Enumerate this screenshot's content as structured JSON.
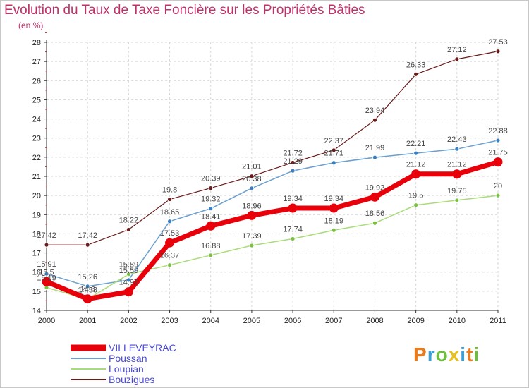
{
  "title": "Evolution du Taux de Taxe Foncière sur les Propriétés Bâties",
  "subtitle": "(en %)",
  "logo": {
    "letters": [
      "P",
      "r",
      "o",
      "x",
      "i",
      "t",
      "i"
    ],
    "colors": [
      "#e87b1e",
      "#3aa0d8",
      "#6dbe3a",
      "#e8c01e",
      "#3aa0d8",
      "#e87b1e",
      "#6dbe3a"
    ]
  },
  "chart_data": {
    "type": "line",
    "x": [
      "2000",
      "2001",
      "2002",
      "2003",
      "2004",
      "2005",
      "2006",
      "2007",
      "2008",
      "2009",
      "2010",
      "2011"
    ],
    "ylim": [
      14,
      28
    ],
    "yticks": [
      14,
      15,
      16,
      17,
      18,
      19,
      20,
      21,
      22,
      23,
      24,
      25,
      26,
      27,
      28
    ],
    "grid": true,
    "legend_position": "bottom-left",
    "series": [
      {
        "name": "Bouzigues",
        "color": "#6b1a1a",
        "point": "#6b1a1a",
        "width": 1.2,
        "r": 3,
        "values": [
          17.42,
          17.42,
          18.22,
          19.8,
          20.39,
          21.01,
          21.72,
          22.37,
          23.94,
          26.33,
          27.12,
          27.53
        ],
        "labels": [
          "17.42",
          "17.42",
          "18.22",
          "19.8",
          "20.39",
          "21.01",
          "21.72",
          "22.37",
          "23.94",
          "26.33",
          "27.12",
          "27.53"
        ]
      },
      {
        "name": "Poussan",
        "color": "#6a9fd0",
        "point": "#3a7fc0",
        "width": 1.5,
        "r": 3,
        "values": [
          15.91,
          15.26,
          15.59,
          18.65,
          19.32,
          20.38,
          21.29,
          21.71,
          21.99,
          22.21,
          22.43,
          22.88
        ],
        "labels": [
          "15.91",
          "15.26",
          "15.59",
          "18.65",
          "19.32",
          "20.38",
          "21.29",
          "21.71",
          "21.99",
          "22.21",
          "22.43",
          "22.88"
        ]
      },
      {
        "name": "Loupian",
        "color": "#a8dc78",
        "point": "#7cc242",
        "width": 1.5,
        "r": 3,
        "values": [
          15.19,
          14.58,
          15.89,
          16.37,
          16.88,
          17.39,
          17.74,
          18.19,
          18.56,
          19.5,
          19.75,
          20
        ],
        "labels": [
          "15.19",
          "14.58",
          "15.89",
          "16.37",
          "16.88",
          "17.39",
          "17.74",
          "18.19",
          "18.56",
          "19.5",
          "19.75",
          "20"
        ]
      },
      {
        "name": "VILLEVEYRAC",
        "color": "#e8000b",
        "point": "#e8000b",
        "width": 7,
        "r": 6.5,
        "values": [
          15.5,
          14.6,
          14.97,
          17.53,
          18.41,
          18.96,
          19.34,
          19.34,
          19.92,
          21.12,
          21.12,
          21.75
        ],
        "labels": [
          "15.5",
          "14.6",
          "14.97",
          "17.53",
          "18.41",
          "18.96",
          "19.34",
          "19.34",
          "19.92",
          "21.12",
          "21.12",
          "21.75"
        ]
      }
    ],
    "legend": [
      "VILLEVEYRAC",
      "Poussan",
      "Loupian",
      "Bouzigues"
    ]
  }
}
